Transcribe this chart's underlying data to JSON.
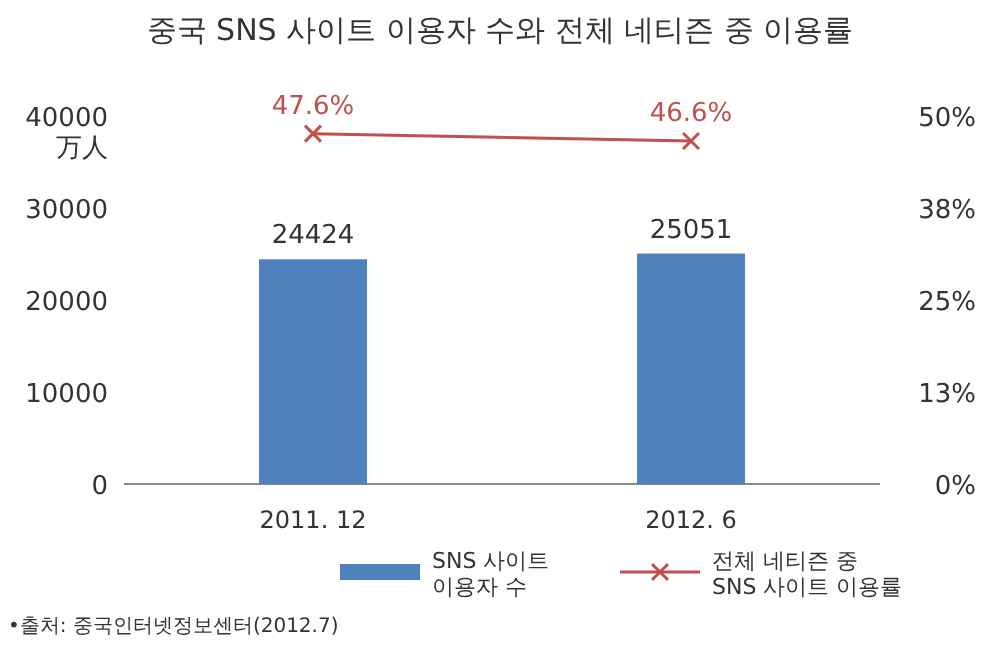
{
  "chart_data": {
    "type": "bar",
    "title": "중국 SNS 사이트 이용자 수와 전체 네티즌 중 이용률",
    "ylabel": "万人",
    "categories": [
      "2011. 12",
      "2012. 6"
    ],
    "series": [
      {
        "name": "SNS 사이트 이용자 수",
        "color": "#4f81bd",
        "values": [
          24424,
          25051
        ],
        "value_labels": [
          "24424",
          "25051"
        ]
      },
      {
        "name": "전체 네티즌 중 SNS 사이트 이용률",
        "type": "line",
        "axis": "y2",
        "color": "#c0504d",
        "marker": "cross",
        "values": [
          47.6,
          46.6
        ],
        "value_labels": [
          "47.6%",
          "46.6%"
        ]
      }
    ],
    "ylim": [
      0,
      40000
    ],
    "yticks": [
      0,
      10000,
      20000,
      30000,
      40000
    ],
    "y2lim": [
      0,
      50
    ],
    "y2ticks": [
      {
        "value": 0,
        "label": "0%"
      },
      {
        "value": 12.5,
        "label": "13%"
      },
      {
        "value": 25,
        "label": "25%"
      },
      {
        "value": 37.5,
        "label": "38%"
      },
      {
        "value": 50,
        "label": "50%"
      }
    ],
    "legend": "bottom",
    "annotations": [
      "•출처: 중국인터넷정보센터(2012.7)"
    ]
  }
}
